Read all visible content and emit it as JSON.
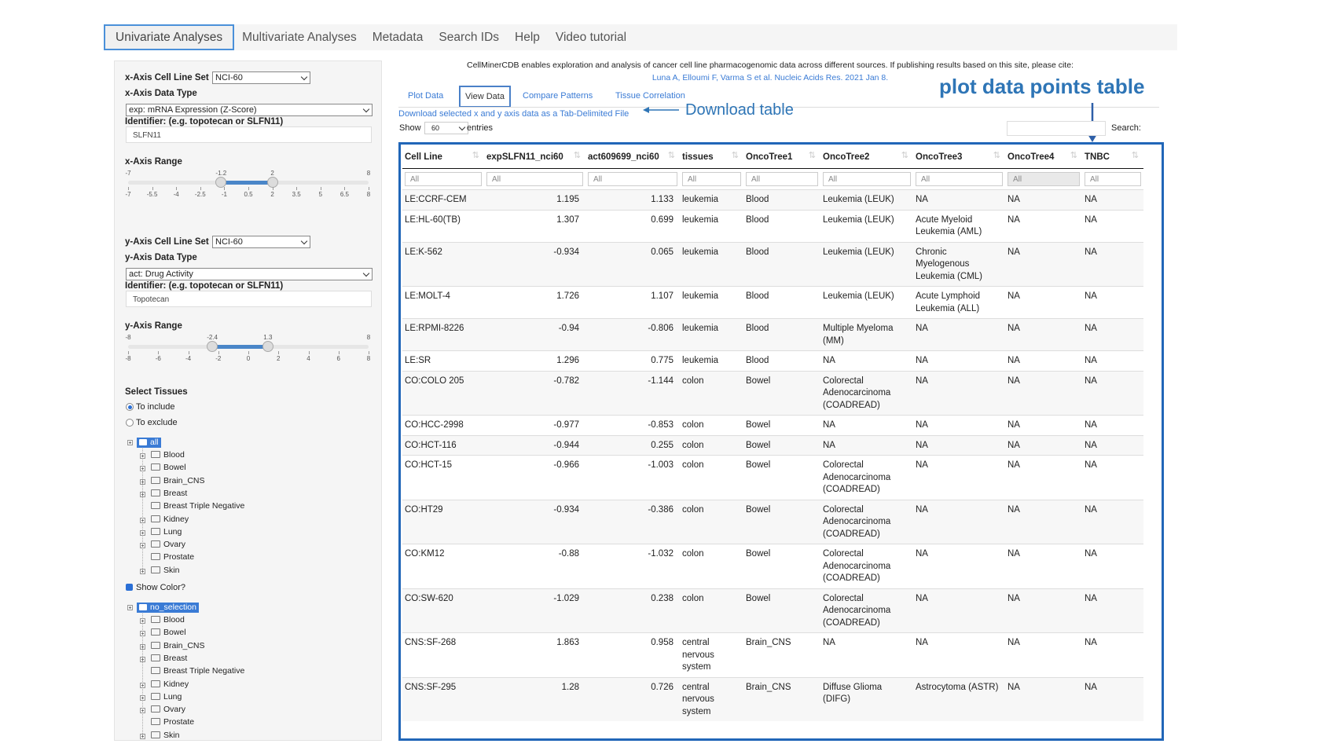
{
  "tabs": [
    "Univariate Analyses",
    "Multivariate Analyses",
    "Metadata",
    "Search IDs",
    "Help",
    "Video tutorial"
  ],
  "sidebar": {
    "x_axis": {
      "cell_line_set_label": "x-Axis Cell Line Set",
      "cell_line_set": "NCI-60",
      "data_type_label": "x-Axis Data Type",
      "data_type": "exp: mRNA Expression (Z-Score)",
      "identifier_label": "Identifier: (e.g. topotecan or SLFN11)",
      "identifier": "SLFN11",
      "range_label": "x-Axis Range",
      "range": {
        "lim": [
          -7,
          8
        ],
        "low": -1.2,
        "high": 2,
        "ticks": [
          -7,
          -5.5,
          -4,
          -2.5,
          -1,
          0.5,
          2,
          3.5,
          5,
          6.5,
          8
        ]
      }
    },
    "y_axis": {
      "cell_line_set_label": "y-Axis Cell Line Set",
      "cell_line_set": "NCI-60",
      "data_type_label": "y-Axis Data Type",
      "data_type": "act: Drug Activity",
      "identifier_label": "Identifier: (e.g. topotecan or SLFN11)",
      "identifier": "Topotecan",
      "range_label": "y-Axis Range",
      "range": {
        "lim": [
          -8,
          8
        ],
        "low": -2.4,
        "high": 1.3,
        "ticks": [
          -8,
          -6,
          -4,
          -2,
          0,
          2,
          4,
          6,
          8
        ]
      }
    },
    "tissues_label": "Select Tissues",
    "tissue_modes": [
      "To include",
      "To exclude"
    ],
    "tissue_tree": {
      "root": "all",
      "items": [
        "Blood",
        "Bowel",
        "Brain_CNS",
        "Breast",
        "Breast Triple Negative",
        "Kidney",
        "Lung",
        "Ovary",
        "Prostate",
        "Skin"
      ]
    },
    "show_color_label": "Show Color?",
    "color_tree": {
      "root": "no_selection",
      "items": [
        "Blood",
        "Bowel",
        "Brain_CNS",
        "Breast",
        "Breast Triple Negative",
        "Kidney",
        "Lung",
        "Ovary",
        "Prostate",
        "Skin"
      ]
    }
  },
  "main": {
    "intro": "CellMinerCDB enables exploration and analysis of cancer cell line pharmacogenomic data across different sources. If publishing results based on this site, please cite:",
    "citation": "Luna A, Elloumi F, Varma S et al. Nucleic Acids Res. 2021 Jan 8.",
    "subtabs": [
      "Plot Data",
      "View Data",
      "Compare Patterns",
      "Tissue Correlation"
    ],
    "download_link": "Download selected x and y axis data as a Tab-Delimited File",
    "annotation_download": "Download table",
    "annotation_table": "plot data points table",
    "show_label": "Show",
    "entries_value": "60",
    "entries_label": "entries",
    "search_label": "Search:",
    "table": {
      "columns": [
        "Cell Line",
        "expSLFN11_nci60",
        "act609699_nci60",
        "tissues",
        "OncoTree1",
        "OncoTree2",
        "OncoTree3",
        "OncoTree4",
        "TNBC"
      ],
      "filter_placeholder": "All",
      "rows": [
        [
          "LE:CCRF-CEM",
          1.195,
          1.133,
          "leukemia",
          "Blood",
          "Leukemia (LEUK)",
          "NA",
          "NA",
          "NA"
        ],
        [
          "LE:HL-60(TB)",
          1.307,
          0.699,
          "leukemia",
          "Blood",
          "Leukemia (LEUK)",
          "Acute Myeloid Leukemia (AML)",
          "NA",
          "NA"
        ],
        [
          "LE:K-562",
          -0.934,
          0.065,
          "leukemia",
          "Blood",
          "Leukemia (LEUK)",
          "Chronic Myelogenous Leukemia (CML)",
          "NA",
          "NA"
        ],
        [
          "LE:MOLT-4",
          1.726,
          1.107,
          "leukemia",
          "Blood",
          "Leukemia (LEUK)",
          "Acute Lymphoid Leukemia (ALL)",
          "NA",
          "NA"
        ],
        [
          "LE:RPMI-8226",
          -0.94,
          -0.806,
          "leukemia",
          "Blood",
          "Multiple Myeloma (MM)",
          "NA",
          "NA",
          "NA"
        ],
        [
          "LE:SR",
          1.296,
          0.775,
          "leukemia",
          "Blood",
          "NA",
          "NA",
          "NA",
          "NA"
        ],
        [
          "CO:COLO 205",
          -0.782,
          -1.144,
          "colon",
          "Bowel",
          "Colorectal Adenocarcinoma (COADREAD)",
          "NA",
          "NA",
          "NA"
        ],
        [
          "CO:HCC-2998",
          -0.977,
          -0.853,
          "colon",
          "Bowel",
          "NA",
          "NA",
          "NA",
          "NA"
        ],
        [
          "CO:HCT-116",
          -0.944,
          0.255,
          "colon",
          "Bowel",
          "NA",
          "NA",
          "NA",
          "NA"
        ],
        [
          "CO:HCT-15",
          -0.966,
          -1.003,
          "colon",
          "Bowel",
          "Colorectal Adenocarcinoma (COADREAD)",
          "NA",
          "NA",
          "NA"
        ],
        [
          "CO:HT29",
          -0.934,
          -0.386,
          "colon",
          "Bowel",
          "Colorectal Adenocarcinoma (COADREAD)",
          "NA",
          "NA",
          "NA"
        ],
        [
          "CO:KM12",
          -0.88,
          -1.032,
          "colon",
          "Bowel",
          "Colorectal Adenocarcinoma (COADREAD)",
          "NA",
          "NA",
          "NA"
        ],
        [
          "CO:SW-620",
          -1.029,
          0.238,
          "colon",
          "Bowel",
          "Colorectal Adenocarcinoma (COADREAD)",
          "NA",
          "NA",
          "NA"
        ],
        [
          "CNS:SF-268",
          1.863,
          0.958,
          "central nervous system",
          "Brain_CNS",
          "NA",
          "NA",
          "NA",
          "NA"
        ],
        [
          "CNS:SF-295",
          1.28,
          0.726,
          "central nervous system",
          "Brain_CNS",
          "Diffuse Glioma (DIFG)",
          "Astrocytoma (ASTR)",
          "NA",
          "NA"
        ]
      ]
    }
  }
}
